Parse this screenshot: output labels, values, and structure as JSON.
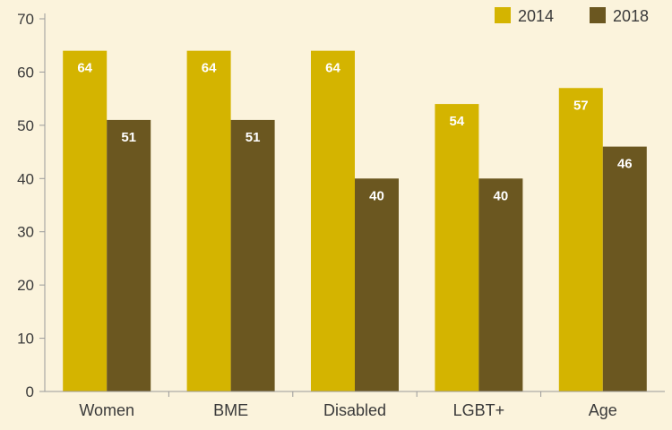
{
  "colors": {
    "background": "#fbf3dc",
    "series_2014": "#d4b400",
    "series_2018": "#6b5720",
    "axis": "#9a9a9a",
    "text": "#3a3a3a"
  },
  "chart_data": {
    "type": "bar",
    "categories": [
      "Women",
      "BME",
      "Disabled",
      "LGBT+",
      "Age"
    ],
    "series": [
      {
        "name": "2014",
        "values": [
          64,
          64,
          64,
          54,
          57
        ]
      },
      {
        "name": "2018",
        "values": [
          51,
          51,
          40,
          40,
          46
        ]
      }
    ],
    "ylim": [
      0,
      70
    ],
    "yticks": [
      0,
      10,
      20,
      30,
      40,
      50,
      60,
      70
    ],
    "legend_position": "top-right",
    "grid": false,
    "title": "",
    "xlabel": "",
    "ylabel": ""
  }
}
